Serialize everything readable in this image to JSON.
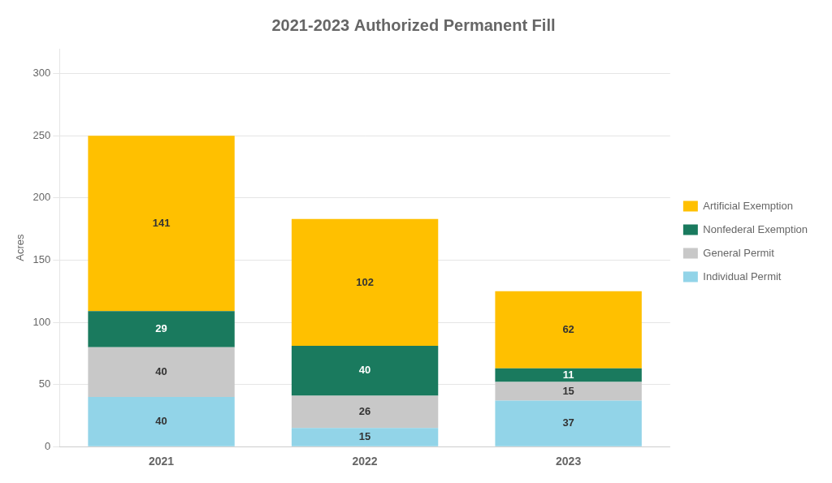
{
  "chart_data": {
    "type": "bar",
    "stacked": true,
    "title": "2021-2023 Authorized Permanent Fill",
    "categories": [
      "2021",
      "2022",
      "2023"
    ],
    "series": [
      {
        "name": "Individual Permit",
        "color": "#92D4E8",
        "values": [
          40,
          15,
          37
        ]
      },
      {
        "name": "General Permit",
        "color": "#C8C8C8",
        "values": [
          40,
          26,
          15
        ]
      },
      {
        "name": "Nonfederal Exemption",
        "color": "#1A7A5E",
        "values": [
          29,
          40,
          11
        ]
      },
      {
        "name": "Artificial Exemption",
        "color": "#FFC000",
        "values": [
          141,
          102,
          62
        ]
      }
    ],
    "ylabel": "Acres",
    "ylim": [
      0,
      320
    ],
    "yticks": [
      0,
      50,
      100,
      150,
      200,
      250,
      300
    ],
    "grid": true,
    "legend": "right",
    "data_labels": true
  }
}
